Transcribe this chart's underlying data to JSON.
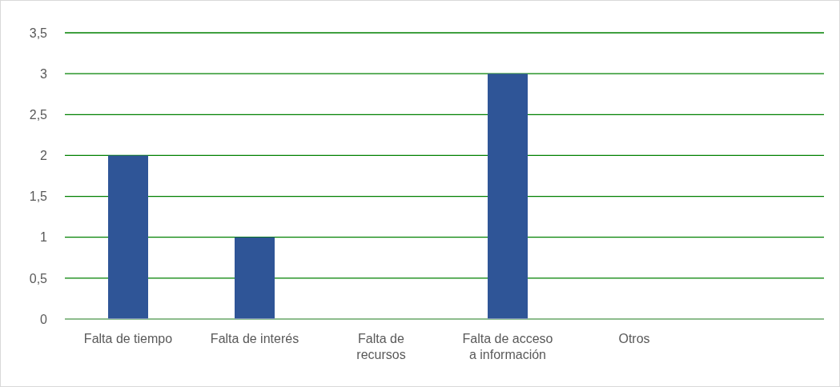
{
  "chart_data": {
    "type": "bar",
    "categories": [
      "Falta de tiempo",
      "Falta de interés",
      "Falta de recursos",
      "Falta de acceso a información",
      "Otros",
      null
    ],
    "values": [
      2,
      1,
      0,
      3,
      0,
      null
    ],
    "color": "#2f5597",
    "ylim": [
      0,
      3.5
    ],
    "yticks": [
      0,
      {
        "value": 0.5,
        "label": "0,5"
      },
      1,
      {
        "value": 1.5,
        "label": "1,5"
      },
      2,
      {
        "value": 2.5,
        "label": "2,5"
      },
      3,
      {
        "value": 3.5,
        "label": "3,5"
      }
    ],
    "grid": "y"
  }
}
